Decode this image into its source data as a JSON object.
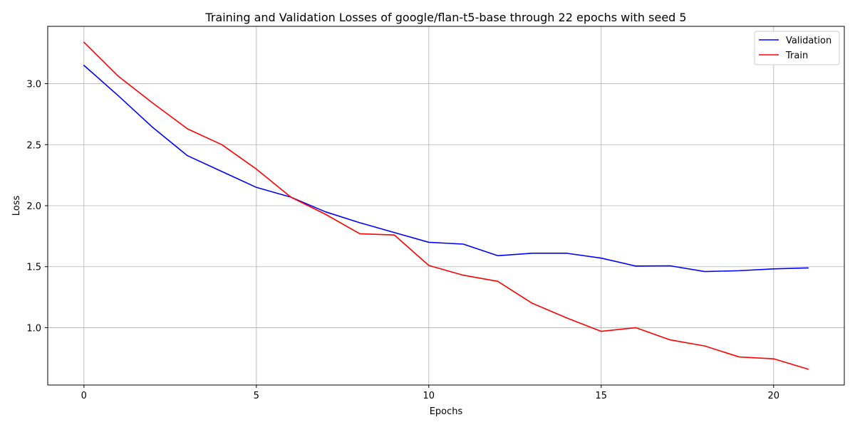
{
  "chart_data": {
    "type": "line",
    "title": "Training and Validation Losses of google/flan-t5-base through 22 epochs with seed 5",
    "xlabel": "Epochs",
    "ylabel": "Loss",
    "x": [
      0,
      1,
      2,
      3,
      4,
      5,
      6,
      7,
      8,
      9,
      10,
      11,
      12,
      13,
      14,
      15,
      16,
      17,
      18,
      19,
      20,
      21
    ],
    "xlim": [
      -1.05,
      22.05
    ],
    "ylim": [
      0.53,
      3.47
    ],
    "xticks": [
      0,
      5,
      10,
      15,
      20
    ],
    "yticks": [
      1.0,
      1.5,
      2.0,
      2.5,
      3.0
    ],
    "grid": true,
    "legend_position": "top-right",
    "series": [
      {
        "name": "Validation",
        "color": "#0000ff",
        "values": [
          3.15,
          2.9,
          2.64,
          2.41,
          2.28,
          2.15,
          2.07,
          1.95,
          1.86,
          1.78,
          1.7,
          1.685,
          1.59,
          1.61,
          1.61,
          1.57,
          1.505,
          1.507,
          1.46,
          1.467,
          1.482,
          1.49
        ]
      },
      {
        "name": "Train",
        "color": "#ff0000",
        "values": [
          3.34,
          3.06,
          2.84,
          2.63,
          2.5,
          2.3,
          2.07,
          1.93,
          1.77,
          1.76,
          1.51,
          1.43,
          1.38,
          1.2,
          1.08,
          0.97,
          1.0,
          0.9,
          0.85,
          0.76,
          0.745,
          0.66
        ]
      }
    ]
  }
}
